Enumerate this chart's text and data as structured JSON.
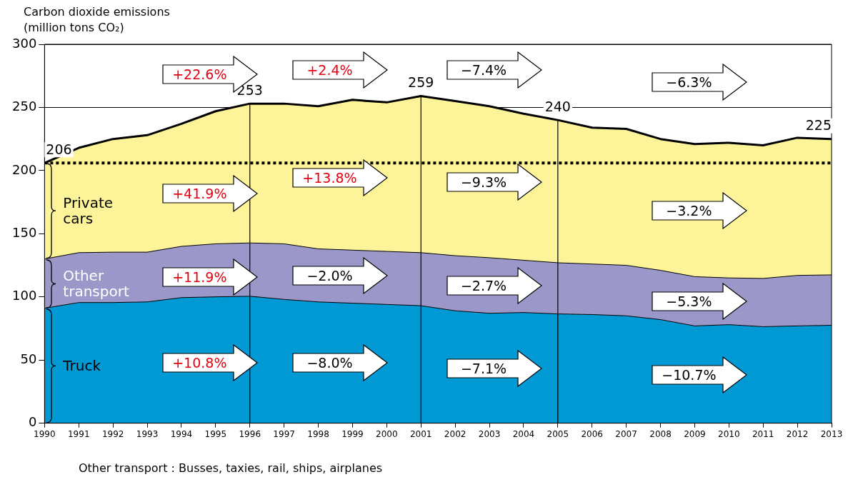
{
  "chart_data": {
    "type": "area",
    "stacked": true,
    "ylabel": "Carbon dioxide emissions (million tons CO₂)",
    "x": [
      1990,
      1991,
      1992,
      1993,
      1994,
      1995,
      1996,
      1997,
      1998,
      1999,
      2000,
      2001,
      2002,
      2003,
      2004,
      2005,
      2006,
      2007,
      2008,
      2009,
      2010,
      2011,
      2012,
      2013
    ],
    "series": [
      {
        "name": "Truck",
        "color": "#0099d4",
        "values": [
          91,
          95.5,
          95.5,
          96,
          99.4,
          100,
          100.5,
          98,
          96,
          95,
          94,
          93,
          89,
          87,
          87.6,
          86.5,
          86,
          85,
          82,
          77,
          78,
          76.4,
          77,
          77.5
        ]
      },
      {
        "name": "Other transport",
        "color": "#9b97c8",
        "values": [
          39,
          39.5,
          39.9,
          39.4,
          40.6,
          42,
          42.2,
          44,
          42,
          42,
          42,
          42,
          43.6,
          44,
          41.4,
          40.5,
          40,
          40,
          39,
          39,
          37,
          38.2,
          40,
          39.9
        ]
      },
      {
        "name": "Private cars",
        "color": "#fdf49a",
        "values": [
          76,
          83,
          89.6,
          92.6,
          97,
          105,
          110.3,
          111,
          113,
          119,
          118,
          124,
          122.4,
          120,
          116,
          113,
          108,
          108,
          104,
          105,
          107,
          105.4,
          109,
          107.6
        ]
      }
    ],
    "totals": [
      "206",
      null,
      null,
      null,
      null,
      null,
      "253",
      null,
      null,
      null,
      null,
      "259",
      null,
      null,
      null,
      "240",
      null,
      null,
      null,
      null,
      null,
      null,
      null,
      "225"
    ],
    "xlim": [
      1990,
      2013
    ],
    "xticks": [
      1990,
      1991,
      1992,
      1993,
      1994,
      1995,
      1996,
      1997,
      1998,
      1999,
      2000,
      2001,
      2002,
      2003,
      2004,
      2005,
      2006,
      2007,
      2008,
      2009,
      2010,
      2011,
      2012,
      2013
    ],
    "ylim": [
      0,
      300
    ],
    "yticks": [
      0,
      50,
      100,
      150,
      200,
      250,
      300
    ],
    "grid": "y",
    "legend": false,
    "ref_lines": [
      {
        "axis": "y",
        "value": 206,
        "color": "#000000",
        "line_style": "dotted"
      },
      {
        "axis": "x",
        "value": 1996,
        "color": "#000000",
        "line_style": "solid"
      },
      {
        "axis": "x",
        "value": 2001,
        "color": "#000000",
        "line_style": "solid"
      },
      {
        "axis": "x",
        "value": 2005,
        "color": "#000000",
        "line_style": "solid"
      }
    ],
    "annotations": [
      "+22.6%",
      "+2.4%",
      "−7.4%",
      "−6.3%",
      "+41.9%",
      "+13.8%",
      "−9.3%",
      "−3.2%",
      "+11.9%",
      "−2.0%",
      "−2.7%",
      "−5.3%",
      "+10.8%",
      "−8.0%",
      "−7.1%",
      "−10.7%",
      "Other transport : Busses, taxies, rail, ships, airplanes"
    ]
  }
}
